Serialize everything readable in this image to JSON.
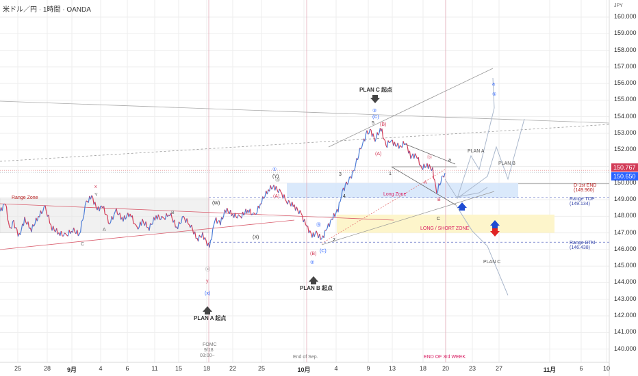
{
  "header": {
    "title": "米ドル／円 · 1時間 · OANDA",
    "currency": "JPY"
  },
  "colors": {
    "up": "#4a7bd6",
    "down": "#d23b57",
    "grid": "#eeeeee",
    "axis_text": "#333333",
    "tag_red": "#d23b57",
    "tag_blue": "#2962ff",
    "long_zone": "#d4e5fa",
    "ls_zone": "#fdf4c8",
    "range_zone": "#e6e6e6",
    "wave_blue": "#2962ff",
    "wave_red": "#c2185b"
  },
  "price_tags": {
    "last": "150.767",
    "current": "150.650"
  },
  "labels": {
    "plan_c_start": "PLAN C 起点",
    "plan_b_start": "PLAN B 起点",
    "plan_a_start": "PLAN A 起点",
    "plan_a": "PLAN A",
    "plan_b": "PLAN B",
    "plan_c": "PLAN C",
    "range_zone": "Range Zone",
    "long_zone": "Long Zone",
    "ls_zone": "LONG / SHORT ZONE",
    "d1_end": "D-1st END",
    "d1_end_val": "(149.960)",
    "range_top": "Range TOP",
    "range_top_val": "(149.134)",
    "range_btm": "Range BTM",
    "range_btm_val": "(146.438)",
    "fomc_1": "FOMC",
    "fomc_2": "9/18",
    "fomc_3": "03:00~",
    "end_sep": "End of Sep.",
    "end_3rd": "END OF 3rd WEEK"
  },
  "chart_data": {
    "type": "line",
    "title": "米ドル／円 · 1時間 · OANDA",
    "xlabel": "",
    "ylabel": "",
    "ylim": [
      139.6,
      161.0
    ],
    "y_ticks": [
      "160.000",
      "159.000",
      "158.000",
      "157.000",
      "156.000",
      "155.000",
      "154.000",
      "153.000",
      "152.000",
      "151.000",
      "150.000",
      "149.000",
      "148.000",
      "147.000",
      "146.000",
      "145.000",
      "144.000",
      "143.000",
      "142.000",
      "141.000",
      "140.000"
    ],
    "x_ticks": [
      "25",
      "28",
      "9月",
      "4",
      "6",
      "11",
      "15",
      "18",
      "22",
      "25",
      "10月",
      "4",
      "9",
      "13",
      "18",
      "20",
      "23",
      "27",
      "11月",
      "6",
      "10"
    ],
    "grid": true,
    "series": [
      {
        "values": [
          [
            0,
            148.3
          ],
          [
            8,
            148.8
          ],
          [
            14,
            147.2
          ],
          [
            20,
            147.6
          ],
          [
            28,
            146.8
          ],
          [
            36,
            147.8
          ],
          [
            46,
            147.2
          ],
          [
            56,
            148.0
          ],
          [
            66,
            148.5
          ],
          [
            76,
            147.3
          ],
          [
            86,
            147.0
          ],
          [
            96,
            146.8
          ],
          [
            106,
            147.2
          ],
          [
            116,
            146.9
          ],
          [
            126,
            148.8
          ],
          [
            134,
            149.2
          ],
          [
            142,
            148.4
          ],
          [
            150,
            148.6
          ],
          [
            160,
            147.6
          ],
          [
            170,
            148.3
          ],
          [
            180,
            147.8
          ],
          [
            190,
            148.2
          ],
          [
            200,
            147.2
          ],
          [
            208,
            147.7
          ],
          [
            218,
            147.3
          ],
          [
            228,
            148.0
          ],
          [
            238,
            147.8
          ],
          [
            248,
            148.2
          ],
          [
            258,
            147.3
          ],
          [
            268,
            147.9
          ],
          [
            278,
            147.5
          ],
          [
            288,
            146.6
          ],
          [
            296,
            146.9
          ],
          [
            306,
            146.1
          ],
          [
            314,
            147.8
          ],
          [
            322,
            147.6
          ],
          [
            330,
            148.4
          ],
          [
            340,
            148.1
          ],
          [
            350,
            147.9
          ],
          [
            362,
            148.4
          ],
          [
            372,
            148.0
          ],
          [
            382,
            148.9
          ],
          [
            392,
            149.6
          ],
          [
            400,
            149.8
          ],
          [
            410,
            149.4
          ],
          [
            420,
            148.9
          ],
          [
            430,
            148.6
          ],
          [
            440,
            148.1
          ],
          [
            448,
            147.4
          ],
          [
            456,
            146.8
          ],
          [
            462,
            147.0
          ],
          [
            470,
            146.6
          ],
          [
            478,
            147.3
          ],
          [
            486,
            147.9
          ],
          [
            494,
            148.4
          ],
          [
            500,
            149.5
          ],
          [
            506,
            149.9
          ],
          [
            512,
            150.3
          ],
          [
            518,
            150.9
          ],
          [
            524,
            151.8
          ],
          [
            530,
            152.4
          ],
          [
            536,
            153.0
          ],
          [
            542,
            153.1
          ],
          [
            548,
            152.6
          ],
          [
            554,
            153.2
          ],
          [
            558,
            153.1
          ],
          [
            564,
            152.2
          ],
          [
            570,
            152.6
          ],
          [
            578,
            152.3
          ],
          [
            586,
            152.2
          ],
          [
            592,
            152.5
          ],
          [
            600,
            151.6
          ],
          [
            608,
            151.7
          ],
          [
            616,
            150.9
          ],
          [
            624,
            151.1
          ],
          [
            632,
            150.8
          ],
          [
            638,
            149.4
          ],
          [
            644,
            150.2
          ],
          [
            650,
            150.6
          ]
        ]
      }
    ],
    "zones": [
      {
        "name": "Range Zone",
        "y": [
          147.0,
          149.1
        ]
      },
      {
        "name": "Long Zone",
        "y": [
          149.1,
          150.0
        ]
      },
      {
        "name": "LONG / SHORT ZONE",
        "y": [
          147.0,
          148.1
        ]
      }
    ],
    "levels": [
      {
        "name": "D-1st END",
        "value": 149.96
      },
      {
        "name": "Range TOP",
        "value": 149.134
      },
      {
        "name": "Range BTM",
        "value": 146.438
      }
    ],
    "wave_labels": [
      "x",
      "Y",
      "ⓒ",
      "y",
      "(x)",
      "A",
      "B",
      "C",
      "(W)",
      "(X)",
      "(Y)",
      "①",
      "(A)",
      "(B)",
      "(C)",
      "②",
      "1",
      "2",
      "3",
      "4",
      "5",
      "③",
      "(C)",
      "(B)",
      "(A)",
      "a",
      "ⓑ",
      "A",
      "B",
      "C",
      "⑤",
      "a",
      "Ⓐ",
      "Ⓑ"
    ]
  }
}
